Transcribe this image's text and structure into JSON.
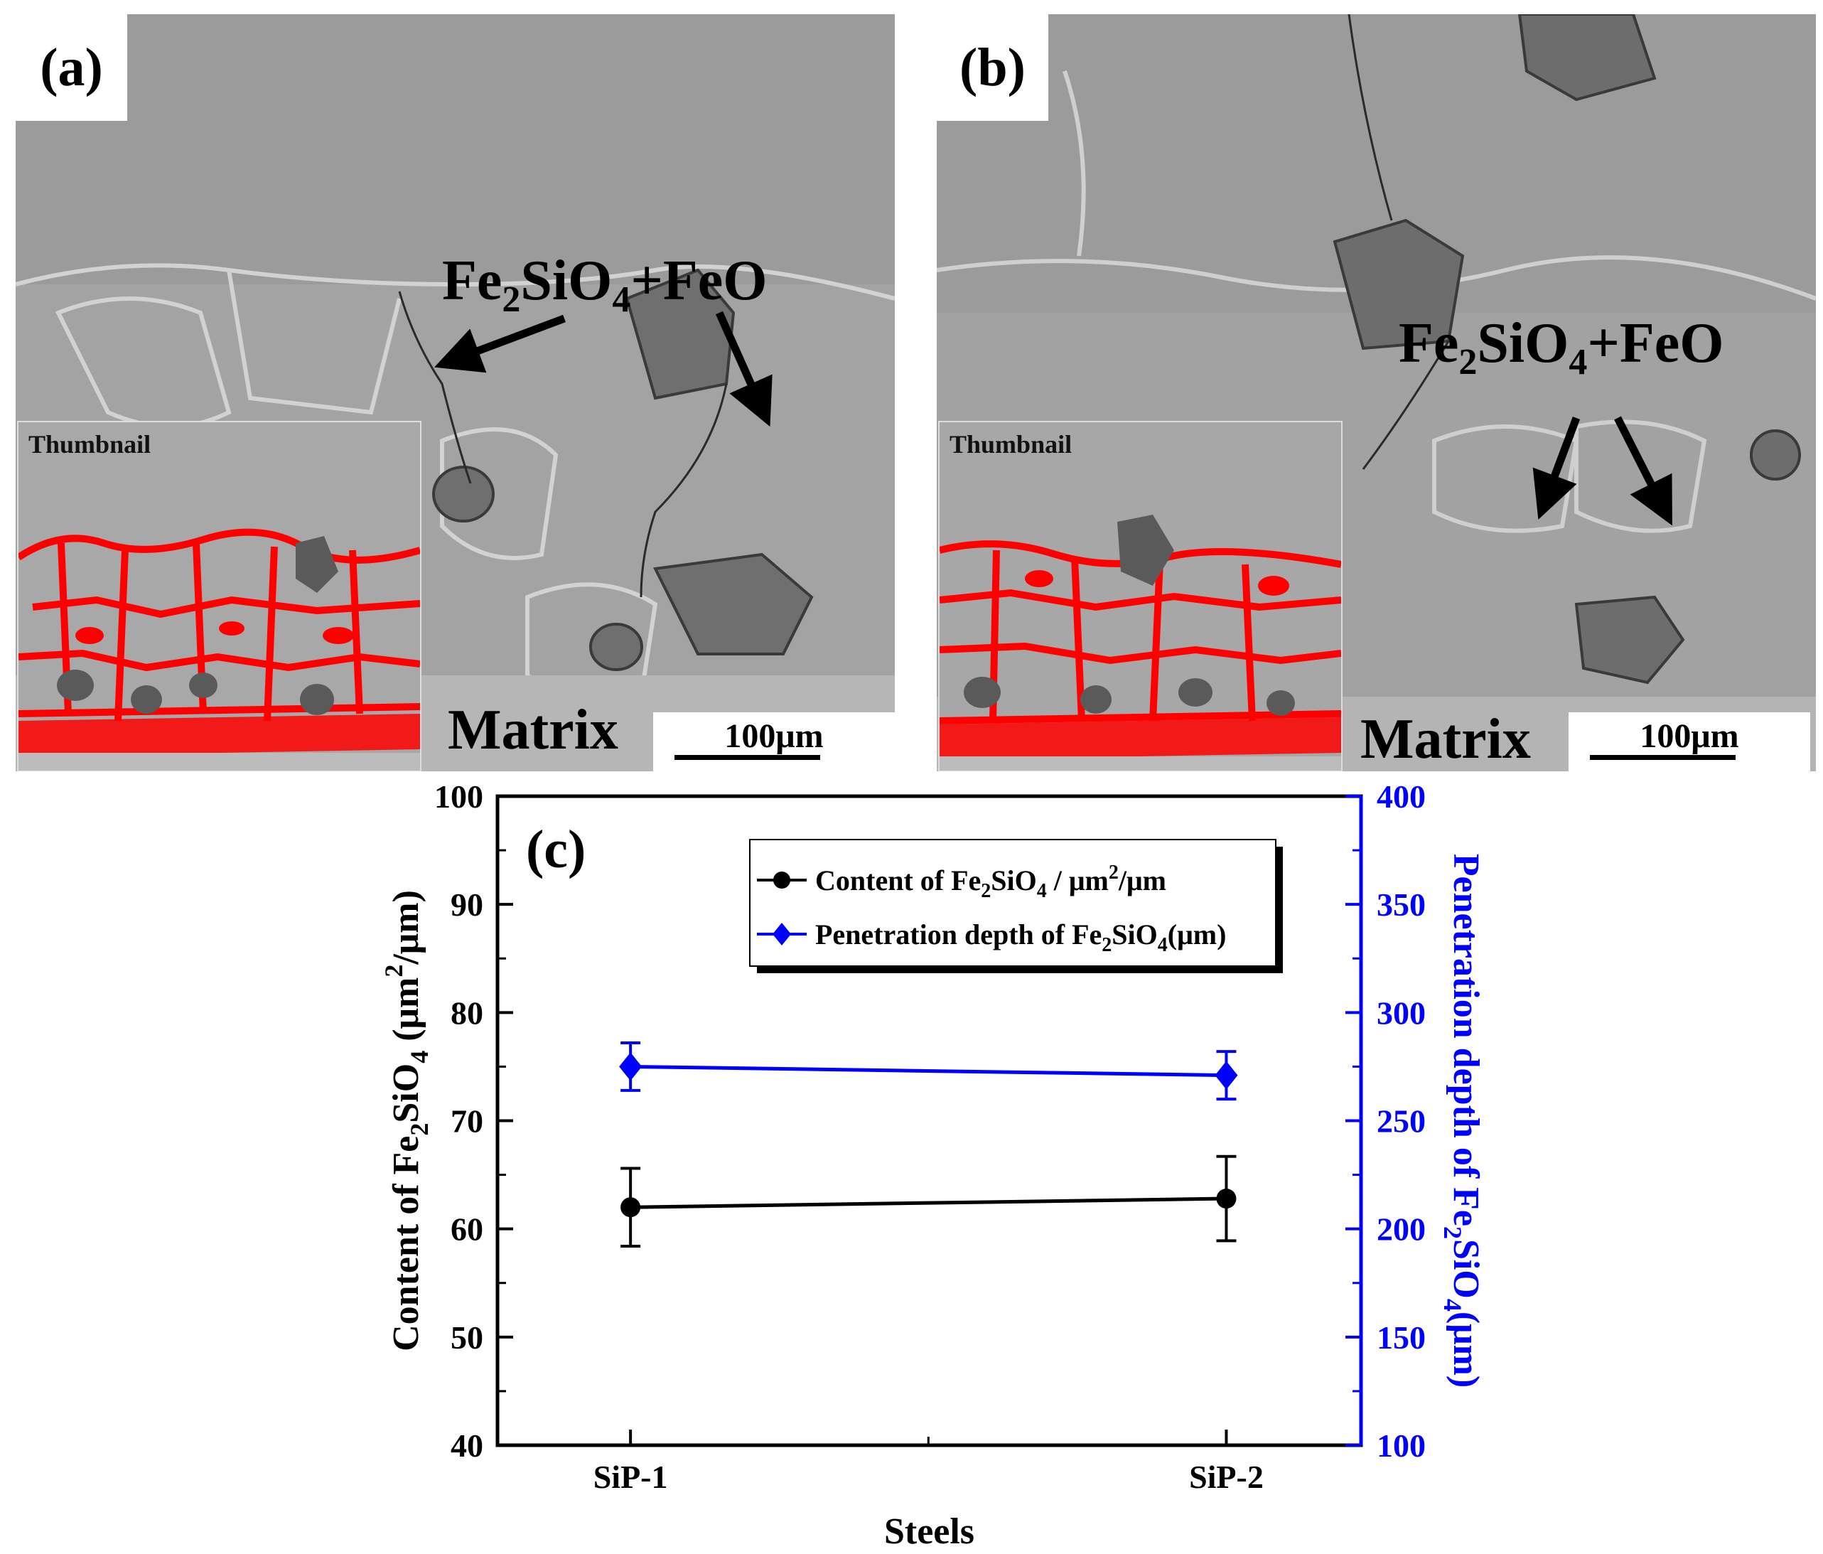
{
  "panels": {
    "a": {
      "label": "(a)",
      "annotation": {
        "base": "Fe",
        "sub1": "2",
        "mid": "SiO",
        "sub2": "4",
        "tail": "+FeO"
      },
      "thumbnail_label": "Thumbnail",
      "matrix_label": "Matrix",
      "scale_label": "100μm"
    },
    "b": {
      "label": "(b)",
      "annotation": {
        "base": "Fe",
        "sub1": "2",
        "mid": "SiO",
        "sub2": "4",
        "tail": "+FeO"
      },
      "thumbnail_label": "Thumbnail",
      "matrix_label": "Matrix",
      "scale_label": "100μm"
    }
  },
  "colors": {
    "series_content": "#000000",
    "series_depth": "#0000ff",
    "right_axis": "#0000ff",
    "highlight": "#ff0000"
  },
  "chart_data": {
    "type": "line",
    "panel_label": "(c)",
    "categories": [
      "SiP-1",
      "SiP-2"
    ],
    "xlabel": "Steels",
    "ylabel_left": {
      "pre": "Content of Fe",
      "s1": "2",
      "mid": "SiO",
      "s2": "4",
      "post": " (μm",
      "sup": "2",
      "end": "/μm)"
    },
    "ylabel_right": {
      "pre": "Penetration depth of Fe",
      "s1": "2",
      "mid": "SiO",
      "s2": "4",
      "post": "(μm)"
    },
    "ylim_left": [
      40,
      100
    ],
    "yticks_left": [
      40,
      50,
      60,
      70,
      80,
      90,
      100
    ],
    "ylim_right": [
      100,
      400
    ],
    "yticks_right": [
      100,
      150,
      200,
      250,
      300,
      350,
      400
    ],
    "legend_position": "top-center",
    "series": [
      {
        "name": {
          "pre": "Content of Fe",
          "s1": "2",
          "mid": "SiO",
          "s2": "4",
          "post": " / μm",
          "sup": "2",
          "end": "/μm"
        },
        "axis": "left",
        "marker": "circle",
        "values": [
          62.0,
          62.8
        ],
        "err": [
          3.6,
          3.9
        ]
      },
      {
        "name": {
          "pre": "Penetration depth of Fe",
          "s1": "2",
          "mid": "SiO",
          "s2": "4",
          "post": "(μm)",
          "sup": "",
          "end": ""
        },
        "axis": "right",
        "marker": "diamond",
        "values": [
          275,
          271
        ],
        "err": [
          11,
          11
        ]
      }
    ]
  }
}
